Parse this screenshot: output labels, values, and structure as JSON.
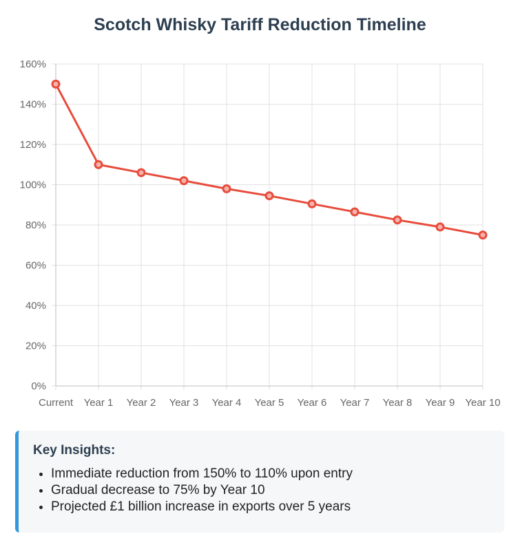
{
  "chart_data": {
    "type": "line",
    "title": "Scotch Whisky Tariff Reduction Timeline",
    "xlabel": "",
    "ylabel": "",
    "categories": [
      "Current",
      "Year 1",
      "Year 2",
      "Year 3",
      "Year 4",
      "Year 5",
      "Year 6",
      "Year 7",
      "Year 8",
      "Year 9",
      "Year 10"
    ],
    "series": [
      {
        "values": [
          150,
          110,
          106,
          102,
          98,
          94.5,
          90.5,
          86.5,
          82.5,
          79,
          75
        ],
        "color": "#e74c3c"
      }
    ],
    "ylim": [
      0,
      160
    ],
    "yticks": [
      "0%",
      "20%",
      "40%",
      "60%",
      "80%",
      "100%",
      "120%",
      "140%",
      "160%"
    ],
    "grid": true,
    "legend": "none"
  },
  "insights": {
    "heading": "Key Insights:",
    "items": [
      "Immediate reduction from 150% to 110% upon entry",
      "Gradual decrease to 75% by Year 10",
      "Projected £1 billion increase in exports over 5 years"
    ]
  }
}
